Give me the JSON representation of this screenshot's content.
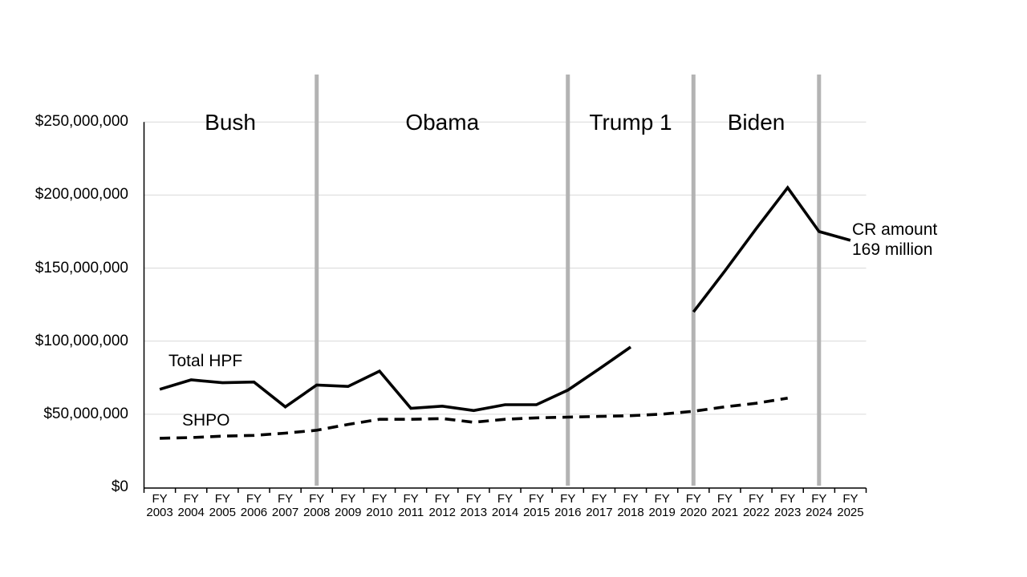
{
  "page": {
    "background": "#ffffff"
  },
  "chart_data": {
    "type": "line",
    "title": "",
    "xlabel": "",
    "ylabel": "",
    "legend_position": "inline-labels",
    "grid": "horizontal-only",
    "x_axis": {
      "categories": [
        "FY 2003",
        "FY 2004",
        "FY 2005",
        "FY 2006",
        "FY 2007",
        "FY 2008",
        "FY 2009",
        "FY 2010",
        "FY 2011",
        "FY 2012",
        "FY 2013",
        "FY 2014",
        "FY 2015",
        "FY 2016",
        "FY 2017",
        "FY 2018",
        "FY 2019",
        "FY 2020",
        "FY 2021",
        "FY 2022",
        "FY 2023",
        "FY 2024",
        "FY 2025"
      ]
    },
    "y_axis": {
      "ylim": [
        0,
        250000000
      ],
      "tick_values": [
        0,
        50000000,
        100000000,
        150000000,
        200000000,
        250000000
      ],
      "tick_labels": [
        "$0",
        "$50,000,000",
        "$100,000,000",
        "$150,000,000",
        "$200,000,000",
        "$250,000,000"
      ]
    },
    "series": [
      {
        "name": "Total HPF",
        "line_style": "solid",
        "color": "#000000",
        "values": [
          67000000,
          73500000,
          71500000,
          72000000,
          55000000,
          70000000,
          69000000,
          79500000,
          54000000,
          55500000,
          52500000,
          56500000,
          56500000,
          66500000,
          81000000,
          96000000,
          null,
          120000000,
          148000000,
          177000000,
          205000000,
          175000000,
          169000000
        ]
      },
      {
        "name": "SHPO",
        "line_style": "dashed",
        "color": "#000000",
        "values": [
          33500000,
          34000000,
          35000000,
          35500000,
          37000000,
          39000000,
          43000000,
          46500000,
          46500000,
          47000000,
          44500000,
          46500000,
          47500000,
          48000000,
          48500000,
          49000000,
          50000000,
          52000000,
          55000000,
          57500000,
          61000000,
          null,
          null
        ]
      }
    ],
    "era_dividers": [
      {
        "at_category": "FY 2008"
      },
      {
        "at_category": "FY 2016"
      },
      {
        "at_category": "FY 2020"
      },
      {
        "at_category": "FY 2024"
      }
    ],
    "era_labels": [
      {
        "label": "Bush",
        "from_category": "FY 2003",
        "to_category": "FY 2008"
      },
      {
        "label": "Obama",
        "from_category": "FY 2008",
        "to_category": "FY 2016"
      },
      {
        "label": "Trump 1",
        "from_category": "FY 2016",
        "to_category": "FY 2020"
      },
      {
        "label": "Biden",
        "from_category": "FY 2020",
        "to_category": "FY 2024"
      }
    ],
    "series_inline_labels": {
      "hpf": "Total HPF",
      "shpo": "SHPO"
    },
    "annotation": {
      "line1": "CR amount",
      "line2": "169 million",
      "at_category": "FY 2025",
      "value": 169000000
    },
    "colors": {
      "grid": "#D9D9D9",
      "divider": "#B3B3B3",
      "axis": "#000000",
      "line": "#000000",
      "text": "#000000"
    }
  }
}
